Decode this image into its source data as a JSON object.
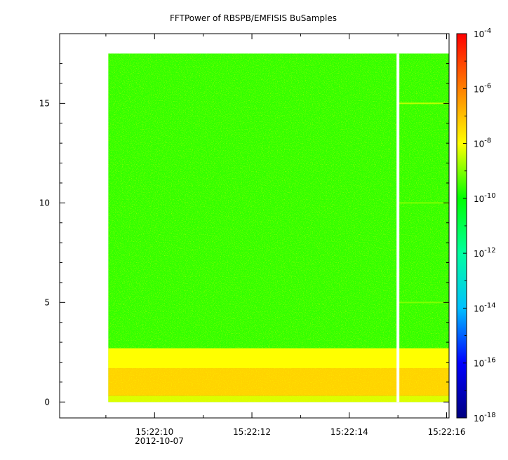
{
  "chart_data": {
    "type": "heatmap",
    "title": "FFTPower of RBSPB/EMFISIS  BuSamples",
    "xlabel": "",
    "ylabel": "",
    "x_ticks": [
      {
        "value": 0,
        "label": "15:22:10"
      },
      {
        "value": 2,
        "label": "15:22:12"
      },
      {
        "value": 4,
        "label": "15:22:14"
      },
      {
        "value": 6,
        "label": "15:22:16"
      }
    ],
    "x_date_label": "2012-10-07",
    "x_minor_ticks": [
      -1,
      1,
      3,
      5
    ],
    "xlim": [
      -1.95,
      6.05
    ],
    "data_x_range": [
      -0.95,
      6.05
    ],
    "gap_x": 5.0,
    "y_ticks": [
      0,
      5,
      10,
      15
    ],
    "ylim": [
      -0.8,
      18.5
    ],
    "data_y_range": [
      0,
      17.5
    ],
    "colorbar": {
      "scale": "log",
      "range_exponent": [
        -18,
        -4
      ],
      "tick_exponents": [
        -18,
        -16,
        -14,
        -12,
        -10,
        -8,
        -6,
        -4
      ],
      "tick_labels": [
        {
          "base": "10",
          "exp": "-18"
        },
        {
          "base": "10",
          "exp": "-16"
        },
        {
          "base": "10",
          "exp": "-14"
        },
        {
          "base": "10",
          "exp": "-12"
        },
        {
          "base": "10",
          "exp": "-10"
        },
        {
          "base": "10",
          "exp": "-8"
        },
        {
          "base": "10",
          "exp": "-6"
        },
        {
          "base": "10",
          "exp": "-4"
        }
      ],
      "colors": [
        "#000080",
        "#0000ff",
        "#00c0ff",
        "#00ffa0",
        "#00ff00",
        "#ffff00",
        "#ff8000",
        "#ff0000"
      ]
    },
    "levels": {
      "background_exponent": -9.6,
      "low_band": [
        {
          "y_min": 0,
          "y_max": 0.3,
          "exponent": -8.3
        },
        {
          "y_min": 0.3,
          "y_max": 1.7,
          "exponent": -7.3
        },
        {
          "y_min": 1.7,
          "y_max": 2.7,
          "exponent": -8.0
        }
      ],
      "horizontal_lines": [
        {
          "y": 15,
          "exponent": -8.5
        },
        {
          "y": 10,
          "exponent": -9.0
        },
        {
          "y": 5,
          "exponent": -9.0
        }
      ]
    },
    "grid": false
  }
}
